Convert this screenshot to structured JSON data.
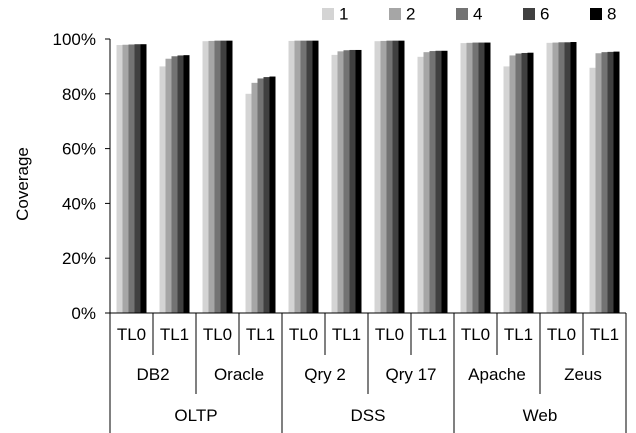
{
  "chart_data": {
    "type": "bar",
    "title": "",
    "xlabel": "",
    "ylabel": "Coverage",
    "ylim": [
      0,
      100
    ],
    "yticks": [
      "0%",
      "20%",
      "40%",
      "60%",
      "80%",
      "100%"
    ],
    "grid": false,
    "legend_position": "top-right",
    "categories": [
      "TL0",
      "TL1",
      "TL0",
      "TL1",
      "TL0",
      "TL1",
      "TL0",
      "TL1",
      "TL0",
      "TL1",
      "TL0",
      "TL1"
    ],
    "workloads": [
      "DB2",
      "Oracle",
      "Qry 2",
      "Qry 17",
      "Apache",
      "Zeus"
    ],
    "groups": [
      "OLTP",
      "DSS",
      "Web"
    ],
    "series": [
      {
        "name": "1",
        "color": "#d4d4d4",
        "values": [
          97.8,
          90.0,
          99.2,
          80.0,
          99.3,
          94.2,
          99.2,
          93.5,
          98.5,
          90.0,
          98.6,
          89.5
        ]
      },
      {
        "name": "2",
        "color": "#a6a6a6",
        "values": [
          97.9,
          92.8,
          99.3,
          84.0,
          99.4,
          95.5,
          99.3,
          95.2,
          98.6,
          94.0,
          98.7,
          94.8
        ]
      },
      {
        "name": "4",
        "color": "#737373",
        "values": [
          98.0,
          93.7,
          99.4,
          85.6,
          99.4,
          95.9,
          99.4,
          95.6,
          98.7,
          94.7,
          98.8,
          95.2
        ]
      },
      {
        "name": "6",
        "color": "#404040",
        "values": [
          98.1,
          94.0,
          99.4,
          86.1,
          99.4,
          96.0,
          99.4,
          95.7,
          98.7,
          94.9,
          98.8,
          95.3
        ]
      },
      {
        "name": "8",
        "color": "#000000",
        "values": [
          98.1,
          94.1,
          99.4,
          86.3,
          99.4,
          96.0,
          99.4,
          95.7,
          98.7,
          95.0,
          98.9,
          95.4
        ]
      }
    ]
  }
}
